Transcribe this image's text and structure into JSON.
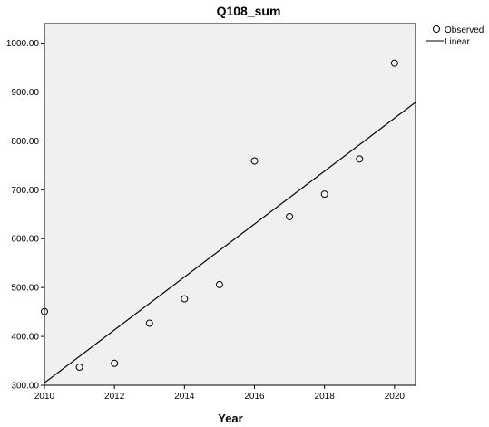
{
  "chart_data": {
    "type": "scatter",
    "title": "Q108_sum",
    "xlabel": "Year",
    "ylabel": "",
    "xlim": [
      2010,
      2020.6
    ],
    "ylim": [
      300,
      1040
    ],
    "xticks": [
      "2010",
      "2012",
      "2014",
      "2016",
      "2018",
      "2020"
    ],
    "yticks": [
      "300.00",
      "400.00",
      "500.00",
      "600.00",
      "700.00",
      "800.00",
      "900.00",
      "1000.00"
    ],
    "grid": false,
    "legend": "right",
    "series": [
      {
        "name": "Observed",
        "kind": "points",
        "x": [
          2010,
          2011,
          2012,
          2013,
          2014,
          2015,
          2016,
          2017,
          2018,
          2019,
          2020
        ],
        "y": [
          451,
          337,
          345,
          427,
          477,
          506,
          759,
          645,
          691,
          763,
          959
        ]
      },
      {
        "name": "Linear",
        "kind": "line",
        "x": [
          2010,
          2020.6
        ],
        "y": [
          305,
          879
        ]
      }
    ],
    "colors": {
      "plot_background": "#f0f0f0",
      "marker": "#000000",
      "line": "#000000"
    }
  }
}
